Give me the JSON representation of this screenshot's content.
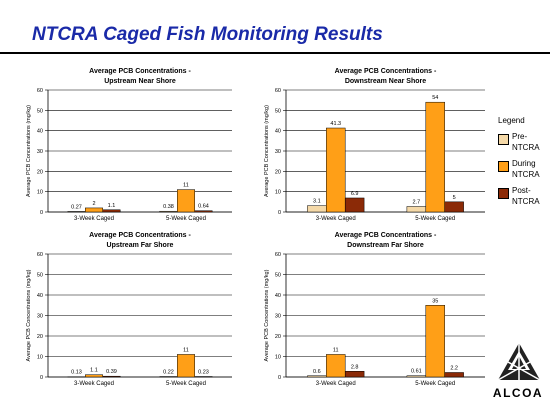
{
  "slide": {
    "title": "NTCRA Caged Fish Monitoring Results"
  },
  "legend": {
    "title": "Legend",
    "items": [
      {
        "label": "Pre-NTCRA",
        "color": "#f5d9a8"
      },
      {
        "label": "During NTCRA",
        "color": "#ff9f17"
      },
      {
        "label": "Post-NTCRA",
        "color": "#8b2a07"
      }
    ]
  },
  "logo": {
    "text": "ALCOA"
  },
  "chart_data": [
    {
      "type": "bar",
      "title": "Average PCB Concentrations - Upstream Near Shore",
      "ylabel": "Average PCB Concentrations (mg/kg)",
      "xlabel": "",
      "ylim": [
        0,
        60
      ],
      "yticks": [
        0,
        10,
        20,
        30,
        40,
        50,
        60
      ],
      "grid": true,
      "categories": [
        "3-Week Caged",
        "5-Week Caged"
      ],
      "series": [
        {
          "name": "Pre-NTCRA",
          "values": [
            0.27,
            0.38
          ],
          "labels": [
            "0.27",
            "0.38"
          ]
        },
        {
          "name": "During NTCRA",
          "values": [
            2,
            11
          ],
          "labels": [
            "2",
            "11"
          ]
        },
        {
          "name": "Post-NTCRA",
          "values": [
            1.1,
            0.64
          ],
          "labels": [
            "1.1",
            "0.64"
          ]
        }
      ]
    },
    {
      "type": "bar",
      "title": "Average PCB Concentrations - Downstream Near Shore",
      "ylabel": "Average PCB Concentrations (mg/kg)",
      "xlabel": "",
      "ylim": [
        0,
        60
      ],
      "yticks": [
        0,
        10,
        20,
        30,
        40,
        50,
        60
      ],
      "grid": true,
      "categories": [
        "3-Week Caged",
        "5-Week Caged"
      ],
      "series": [
        {
          "name": "Pre-NTCRA",
          "values": [
            3.1,
            2.7
          ],
          "labels": [
            "3.1",
            "2.7"
          ]
        },
        {
          "name": "During NTCRA",
          "values": [
            41.3,
            54
          ],
          "labels": [
            "41.3",
            "54"
          ]
        },
        {
          "name": "Post-NTCRA",
          "values": [
            6.9,
            5
          ],
          "labels": [
            "6.9",
            "5"
          ]
        }
      ]
    },
    {
      "type": "bar",
      "title": "Average PCB Concentrations - Upstream Far Shore",
      "ylabel": "Average PCB Concentrations (mg/kg)",
      "xlabel": "",
      "ylim": [
        0,
        60
      ],
      "yticks": [
        0,
        10,
        20,
        30,
        40,
        50,
        60
      ],
      "grid": true,
      "categories": [
        "3-Week Caged",
        "5-Week Caged"
      ],
      "series": [
        {
          "name": "Pre-NTCRA",
          "values": [
            0.13,
            0.22
          ],
          "labels": [
            "0.13",
            "0.22"
          ]
        },
        {
          "name": "During NTCRA",
          "values": [
            1.1,
            11
          ],
          "labels": [
            "1.1",
            "11"
          ]
        },
        {
          "name": "Post-NTCRA",
          "values": [
            0.39,
            0.23
          ],
          "labels": [
            "0.39",
            "0.23"
          ]
        }
      ]
    },
    {
      "type": "bar",
      "title": "Average PCB Concentrations - Downstream Far Shore",
      "ylabel": "Average PCB Concentrations (mg/kg)",
      "xlabel": "",
      "ylim": [
        0,
        60
      ],
      "yticks": [
        0,
        10,
        20,
        30,
        40,
        50,
        60
      ],
      "grid": true,
      "categories": [
        "3-Week Caged",
        "5-Week Caged"
      ],
      "series": [
        {
          "name": "Pre-NTCRA",
          "values": [
            0.6,
            0.61
          ],
          "labels": [
            "0.6",
            "0.61"
          ]
        },
        {
          "name": "During NTCRA",
          "values": [
            11,
            35
          ],
          "labels": [
            "11",
            "35"
          ]
        },
        {
          "name": "Post-NTCRA",
          "values": [
            2.8,
            2.2
          ],
          "labels": [
            "2.8",
            "2.2"
          ]
        }
      ]
    }
  ]
}
